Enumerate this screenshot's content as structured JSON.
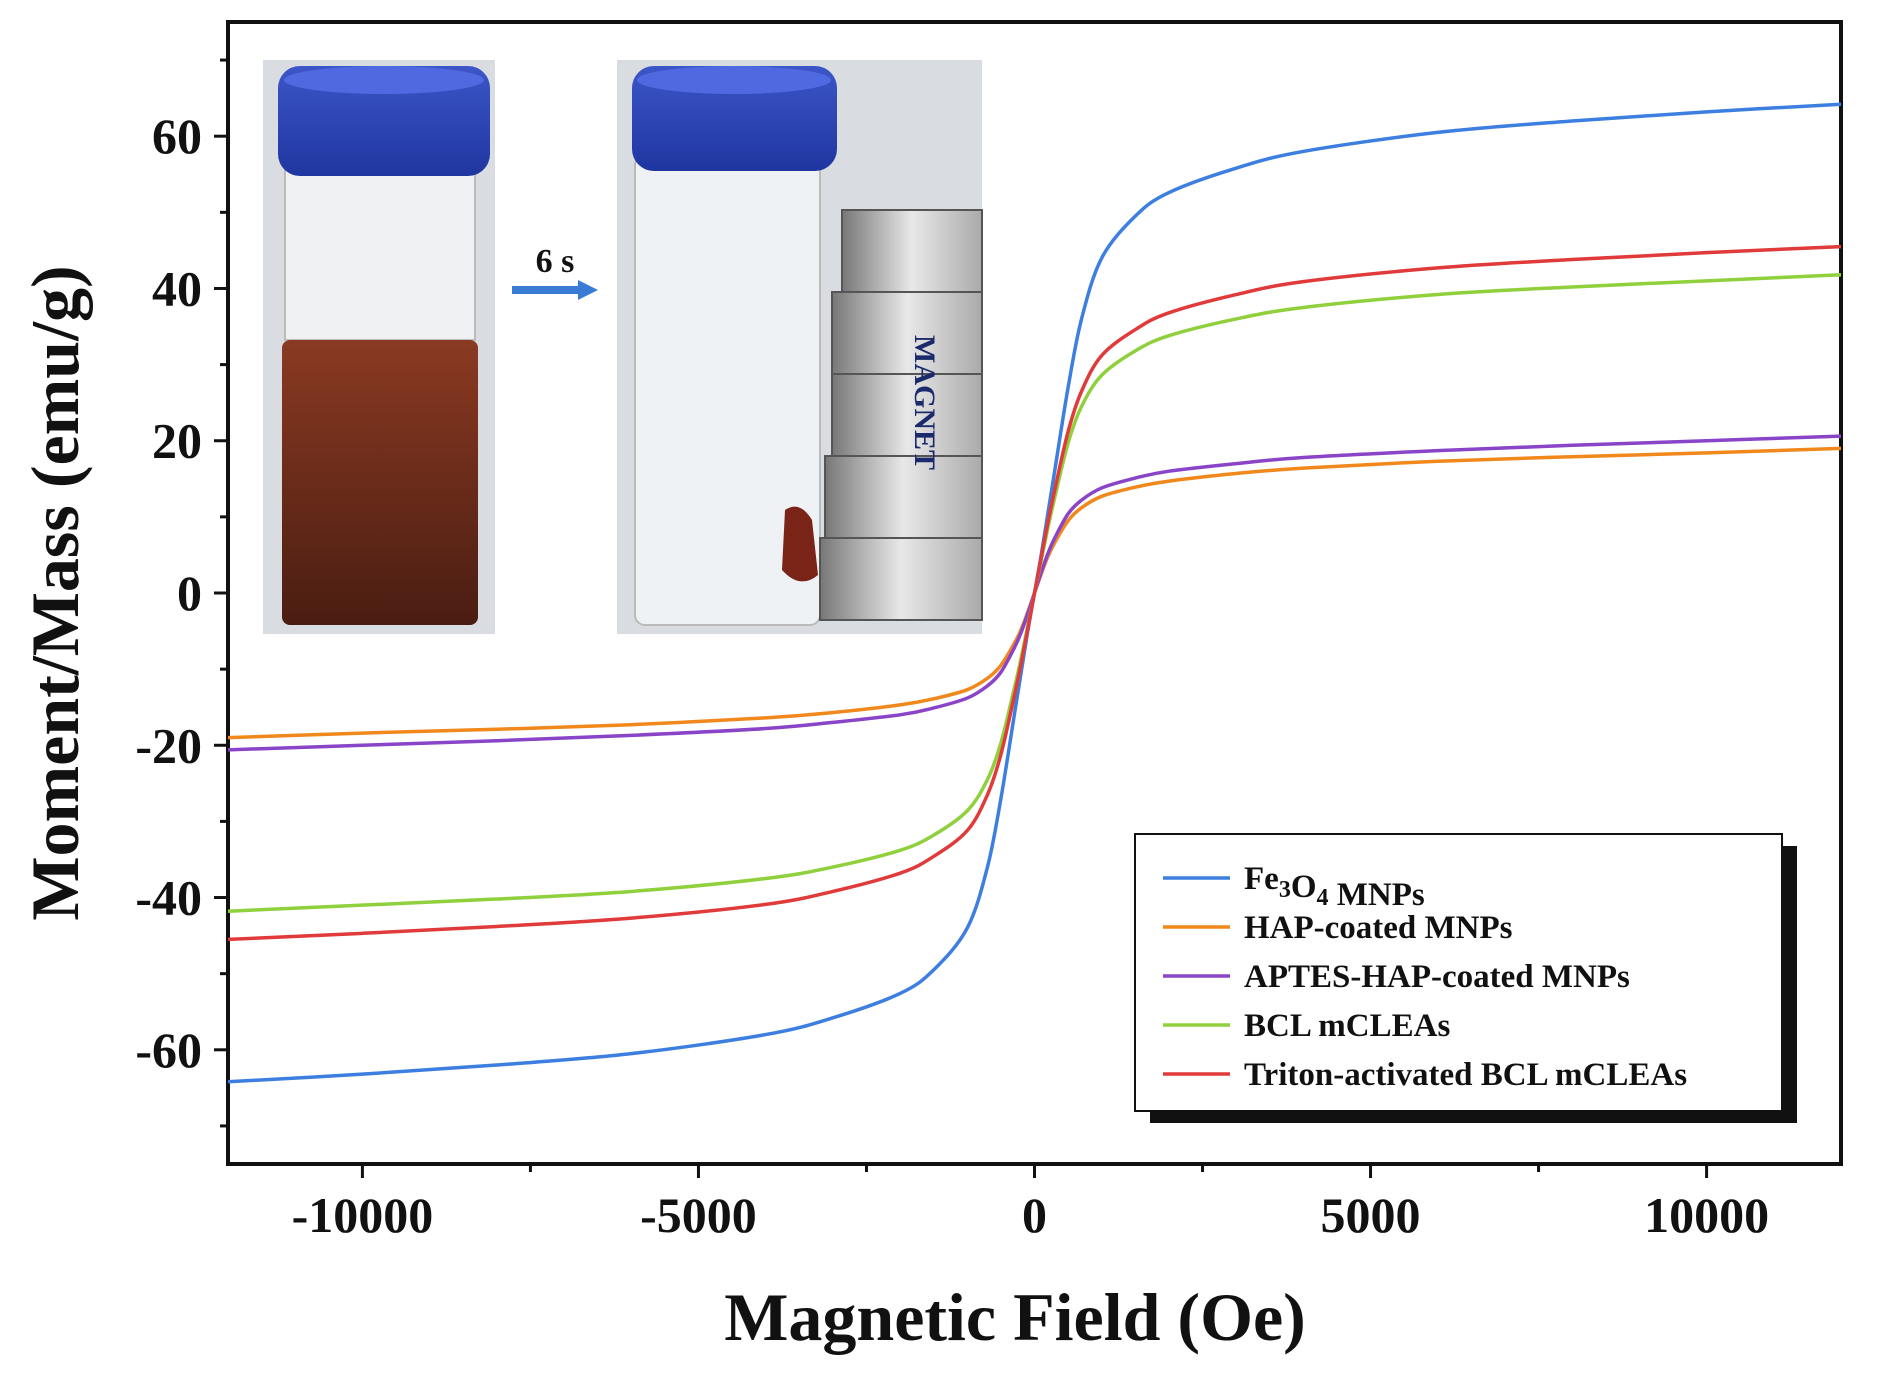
{
  "chart_data": {
    "type": "line",
    "title": "",
    "xlabel": "Magnetic Field (Oe)",
    "ylabel": "Moment/Mass (emu/g)",
    "xlim": [
      -12000,
      12000
    ],
    "ylim": [
      -75,
      75
    ],
    "x_ticks": [
      -10000,
      -5000,
      0,
      5000,
      10000
    ],
    "y_ticks": [
      -60,
      -40,
      -20,
      0,
      20,
      40,
      60
    ],
    "x_tick_labels": [
      "-10000",
      "-5000",
      "0",
      "5000",
      "10000"
    ],
    "y_tick_labels": [
      "-60",
      "-40",
      "-20",
      "0",
      "20",
      "40",
      "60"
    ],
    "grid": false,
    "legend_position": "bottom-right",
    "x": [
      -12000,
      -10000,
      -8000,
      -6000,
      -4000,
      -3000,
      -2000,
      -1500,
      -1000,
      -700,
      -500,
      -300,
      -200,
      -100,
      0,
      100,
      200,
      300,
      500,
      700,
      1000,
      1500,
      2000,
      3000,
      4000,
      6000,
      8000,
      10000,
      12000
    ],
    "series": [
      {
        "name": "Fe3O4 MNPs",
        "color": "#3d7fe0",
        "values": [
          -64.2,
          -63.2,
          -62.0,
          -60.5,
          -58.0,
          -55.8,
          -52.6,
          -49.5,
          -44.0,
          -36.0,
          -27.0,
          -16.0,
          -10.5,
          -5.0,
          0,
          5.0,
          10.5,
          16.0,
          27.0,
          36.0,
          44.0,
          49.5,
          52.6,
          55.8,
          58.0,
          60.5,
          62.0,
          63.2,
          64.2
        ]
      },
      {
        "name": "HAP-coated MNPs",
        "color": "#f0881c",
        "values": [
          -19.0,
          -18.4,
          -17.9,
          -17.3,
          -16.4,
          -15.7,
          -14.7,
          -13.9,
          -12.7,
          -11.2,
          -9.5,
          -6.6,
          -4.8,
          -2.5,
          0,
          2.5,
          4.8,
          6.6,
          9.5,
          11.2,
          12.7,
          13.9,
          14.7,
          15.7,
          16.4,
          17.3,
          17.9,
          18.4,
          19.0
        ]
      },
      {
        "name": "APTES-HAP-coated MNPs",
        "color": "#8a44c8",
        "values": [
          -20.6,
          -20.0,
          -19.4,
          -18.7,
          -17.8,
          -17.0,
          -16.0,
          -15.1,
          -13.8,
          -12.2,
          -10.4,
          -7.2,
          -5.2,
          -2.7,
          0,
          2.7,
          5.2,
          7.2,
          10.4,
          12.2,
          13.8,
          15.1,
          16.0,
          17.0,
          17.8,
          18.7,
          19.4,
          20.0,
          20.6
        ]
      },
      {
        "name": "BCL mCLEAs",
        "color": "#8fd03c",
        "values": [
          -41.8,
          -41.0,
          -40.2,
          -39.2,
          -37.5,
          -36.0,
          -33.8,
          -31.8,
          -28.6,
          -24.5,
          -19.7,
          -12.5,
          -8.6,
          -4.3,
          0,
          4.3,
          8.6,
          12.5,
          19.7,
          24.5,
          28.6,
          31.8,
          33.8,
          36.0,
          37.5,
          39.2,
          40.2,
          41.0,
          41.8
        ]
      },
      {
        "name": "Triton-activated BCL mCLEAs",
        "color": "#e03a3a",
        "values": [
          -45.5,
          -44.7,
          -43.8,
          -42.7,
          -40.9,
          -39.2,
          -36.8,
          -34.6,
          -31.2,
          -26.5,
          -21.2,
          -13.5,
          -9.3,
          -4.7,
          0,
          4.7,
          9.3,
          13.5,
          21.2,
          26.5,
          31.2,
          34.6,
          36.8,
          39.2,
          40.9,
          42.7,
          43.8,
          44.7,
          45.5
        ]
      }
    ]
  },
  "legend": {
    "entries": [
      {
        "pre": "Fe",
        "sub1": "3",
        "mid": "O",
        "sub2": "4",
        "post": " MNPs"
      },
      {
        "text": "HAP-coated MNPs"
      },
      {
        "text": "APTES-HAP-coated MNPs"
      },
      {
        "text": "BCL mCLEAs"
      },
      {
        "text": "Triton-activated BCL mCLEAs"
      }
    ]
  },
  "inset": {
    "arrow_label": "6 s",
    "magnet_label": "MAGNET"
  }
}
